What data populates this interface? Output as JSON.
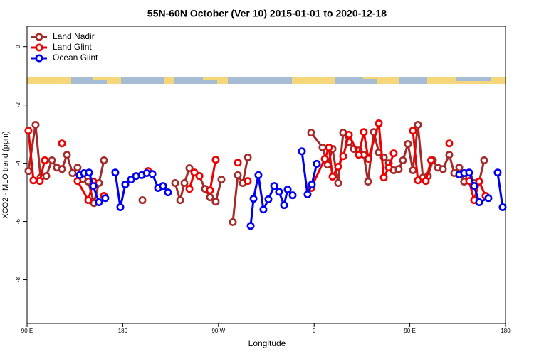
{
  "chart_data": {
    "type": "line",
    "title": "55N-60N October (Ver 10)   2015-01-01 to 2020-12-18",
    "x_label": "Longitude",
    "y_label": "XCO2 - MLO trend (ppm)",
    "xlim": [
      90,
      540
    ],
    "ylim": [
      -9.5,
      0.7
    ],
    "xticks": [
      {
        "value": 90,
        "label": "90 E"
      },
      {
        "value": 180,
        "label": "180"
      },
      {
        "value": 270,
        "label": "90 W"
      },
      {
        "value": 360,
        "label": "0"
      },
      {
        "value": 450,
        "label": "90 E"
      },
      {
        "value": 540,
        "label": "180"
      }
    ],
    "yticks": [
      0,
      -2,
      -4,
      -6,
      -8
    ],
    "legend": "top-left",
    "grid": false,
    "series": [
      {
        "name": "Land Nadir",
        "color": "#a52a2a",
        "x": [
          91.3,
          98,
          102.7,
          108.1,
          113.4,
          118.1,
          122.8,
          127.5,
          132.8,
          137.5,
          142.2,
          147.6,
          152.9,
          157.6,
          162.3,
          null,
          198.5,
          null,
          229.3,
          234,
          238,
          242.7,
          247.4,
          252.1,
          257.4,
          262.1,
          267.4,
          272.8,
          null,
          283.5,
          288.2,
          292.9,
          297.6,
          null,
          357.2,
          367.9,
          372.6,
          377.3,
          382.6,
          387.3,
          392.7,
          397.3,
          402,
          406.7,
          410.7,
          416.1,
          420.8,
          425.5,
          430.2,
          434.8,
          439.5,
          443.5,
          448.2,
          452.9,
          457.6,
          462.3,
          467,
          471.7,
          476.4,
          481.1,
          487.1,
          491.8,
          496.5,
          501.1,
          505.8,
          510.5,
          515.2,
          519.9
        ],
        "values": [
          -4.27,
          -2.68,
          -4.49,
          -4.44,
          -3.9,
          -4.15,
          -4.2,
          -3.71,
          -4.34,
          -4.15,
          -4.54,
          -4.63,
          -5.37,
          -4.68,
          -3.9,
          null,
          -5.27,
          null,
          -4.68,
          -5.27,
          -4.68,
          -4.17,
          -4.32,
          -4.44,
          -4.88,
          -5.17,
          -5.32,
          -4.56,
          null,
          -6.02,
          -4.41,
          -4.68,
          -3.8,
          null,
          -2.95,
          -3.46,
          -4.05,
          -3.51,
          -4.68,
          -2.95,
          -3.27,
          -3.51,
          -3.56,
          -3.71,
          -4.63,
          -2.93,
          -3.63,
          -3.8,
          -4.0,
          -4.24,
          -4.2,
          -3.9,
          -3.34,
          -4.24,
          -2.68,
          -4.49,
          -4.44,
          -3.9,
          -4.15,
          -4.2,
          -3.71,
          -4.34,
          -4.15,
          -4.63,
          -4.49,
          -4.68,
          -4.63,
          -3.9
        ]
      },
      {
        "name": "Land Glint",
        "color": "#ee0000",
        "x": [
          91.3,
          96,
          102,
          106.7,
          null,
          122.8,
          null,
          137.5,
          147.6,
          152.3,
          null,
          162.3,
          null,
          203.8,
          null,
          242.7,
          247.4,
          252.1,
          null,
          262.1,
          267.4,
          null,
          288.2,
          null,
          297.6,
          null,
          357.2,
          370,
          373.9,
          377.3,
          382.6,
          387.3,
          392.7,
          402,
          406.7,
          411,
          420.8,
          425.5,
          430.2,
          434.8,
          null,
          452.9,
          457.6,
          465,
          470,
          null,
          487.1,
          null,
          505.8,
          510.5,
          515.2,
          521.2
        ],
        "values": [
          -2.88,
          -4.59,
          -4.61,
          -3.9,
          null,
          -3.32,
          null,
          -4.61,
          -5.27,
          -4.63,
          null,
          -5.12,
          null,
          -4.27,
          null,
          -4.88,
          -4.32,
          -4.44,
          null,
          -4.93,
          -3.88,
          null,
          -3.98,
          null,
          -4.61,
          null,
          -4.85,
          -3.85,
          -3.46,
          -4.46,
          -4.12,
          -3.76,
          -3.02,
          -3.71,
          -2.93,
          -3.85,
          -2.63,
          -4.49,
          -4.15,
          -3.66,
          null,
          -2.88,
          -4.59,
          -4.61,
          -3.9,
          null,
          -3.32,
          null,
          -4.61,
          -5.27,
          -4.63,
          -5.12
        ]
      },
      {
        "name": "Ocean Glint",
        "color": "#0000ee",
        "x": [
          139.5,
          143.6,
          148.3,
          152.3,
          157.6,
          163.6,
          null,
          173,
          177.7,
          182.4,
          187.8,
          192.5,
          197.8,
          202.5,
          207.9,
          213.2,
          217.9,
          222.6,
          null,
          300.3,
          303,
          307.6,
          312.3,
          317,
          322.4,
          327,
          331.7,
          335.1,
          339.8,
          null,
          348.5,
          353.8,
          357.8,
          362.5,
          null,
          496.5,
          501.1,
          505.8,
          510.5,
          515.2,
          523.9,
          null,
          532.6,
          537.3
        ],
        "values": [
          -4.41,
          -4.34,
          -4.32,
          -4.78,
          -5.34,
          -5.2,
          null,
          -4.32,
          -5.51,
          -4.73,
          -4.56,
          -4.44,
          -4.41,
          -4.34,
          -4.37,
          -4.85,
          -4.78,
          -5.0,
          null,
          -6.15,
          -5.22,
          -4.41,
          -5.59,
          -5.24,
          -4.78,
          -4.98,
          -5.44,
          -4.9,
          -5.1,
          null,
          -3.59,
          -5.07,
          -4.73,
          -4.02,
          null,
          -4.39,
          -4.34,
          -4.32,
          -4.78,
          -5.34,
          -5.2,
          null,
          -4.32,
          -5.51
        ]
      }
    ]
  }
}
